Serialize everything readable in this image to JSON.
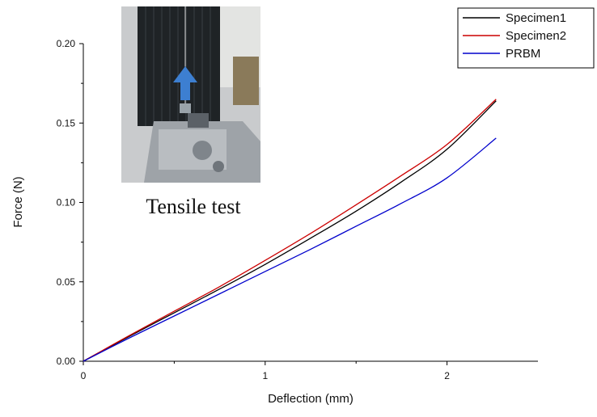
{
  "chart_data": {
    "type": "line",
    "xlabel": "Deflection (mm)",
    "ylabel": "Force (N)",
    "xlim": [
      0,
      2.5
    ],
    "ylim": [
      0,
      0.2
    ],
    "x_ticks": [
      "0",
      "1",
      "2"
    ],
    "y_ticks": [
      "0.00",
      "0.05",
      "0.10",
      "0.15",
      "0.20"
    ],
    "x_tick_values": [
      0,
      1,
      2
    ],
    "y_tick_values": [
      0,
      0.05,
      0.1,
      0.15,
      0.2
    ],
    "grid": false,
    "legend_position": "top-right",
    "series": [
      {
        "name": "Specimen1",
        "color": "#000000",
        "x": [
          0,
          0.25,
          0.5,
          0.75,
          1.0,
          1.25,
          1.5,
          1.75,
          2.0,
          2.27
        ],
        "y": [
          0,
          0.0155,
          0.0305,
          0.0455,
          0.061,
          0.0775,
          0.0945,
          0.113,
          0.1335,
          0.164
        ]
      },
      {
        "name": "Specimen2",
        "color": "#cc0000",
        "x": [
          0,
          0.25,
          0.5,
          0.75,
          1.0,
          1.25,
          1.5,
          1.75,
          2.0,
          2.27
        ],
        "y": [
          0,
          0.016,
          0.0315,
          0.047,
          0.0635,
          0.0805,
          0.0985,
          0.117,
          0.1365,
          0.165
        ]
      },
      {
        "name": "PRBM",
        "color": "#0000cc",
        "x": [
          0,
          0.25,
          0.5,
          0.75,
          1.0,
          1.25,
          1.5,
          1.75,
          2.0,
          2.27
        ],
        "y": [
          0,
          0.0145,
          0.0285,
          0.0425,
          0.0565,
          0.0705,
          0.085,
          0.0995,
          0.1155,
          0.1405
        ]
      }
    ],
    "inset": {
      "caption": "Tensile test",
      "icon": "tensile-test-photo"
    }
  }
}
